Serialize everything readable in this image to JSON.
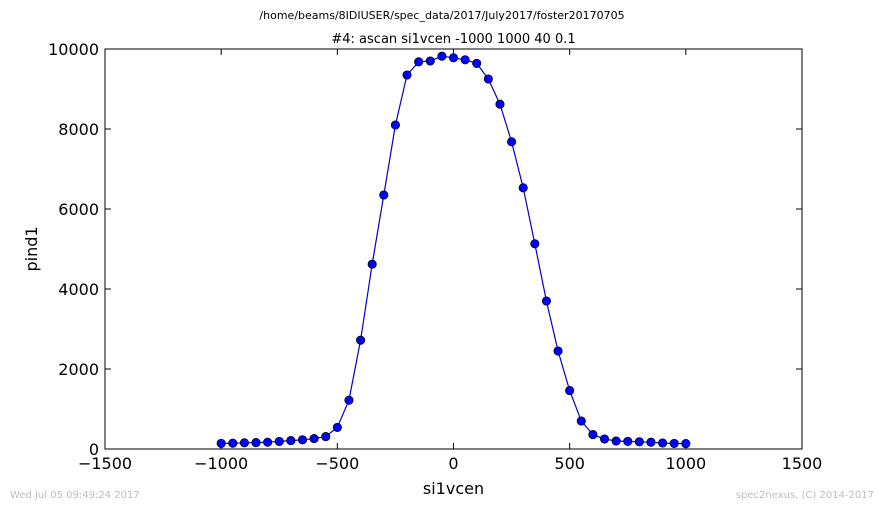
{
  "chart_data": {
    "type": "line",
    "suptitle": "/home/beams/8IDIUSER/spec_data/2017/July2017/foster20170705",
    "title": "#4: ascan  si1vcen -1000 1000  40 0.1",
    "xlabel": "si1vcen",
    "ylabel": "pind1",
    "xlim": [
      -1500,
      1500
    ],
    "ylim": [
      0,
      10000
    ],
    "xticks": [
      -1500,
      -1000,
      -500,
      0,
      500,
      1000,
      1500
    ],
    "yticks": [
      0,
      2000,
      4000,
      6000,
      8000,
      10000
    ],
    "grid": false,
    "marker": "circle",
    "series_color": "#0000ff",
    "line_color": "#0000cc",
    "x": [
      -1000,
      -950,
      -900,
      -850,
      -800,
      -750,
      -700,
      -650,
      -600,
      -550,
      -500,
      -450,
      -400,
      -350,
      -300,
      -250,
      -200,
      -150,
      -100,
      -50,
      0,
      50,
      100,
      150,
      200,
      250,
      300,
      350,
      400,
      450,
      500,
      550,
      600,
      650,
      700,
      750,
      800,
      850,
      900,
      950,
      1000
    ],
    "y": [
      140,
      145,
      155,
      160,
      170,
      190,
      210,
      230,
      260,
      310,
      540,
      1220,
      2720,
      4620,
      6350,
      8100,
      9350,
      9680,
      9700,
      9820,
      9780,
      9730,
      9640,
      9250,
      8620,
      7680,
      6530,
      5130,
      3700,
      2450,
      1460,
      700,
      360,
      250,
      200,
      190,
      180,
      170,
      150,
      140,
      135
    ]
  },
  "footer": {
    "timestamp": "Wed Jul 05 09:49:24 2017",
    "credit": "spec2nexus, (C) 2014-2017"
  }
}
